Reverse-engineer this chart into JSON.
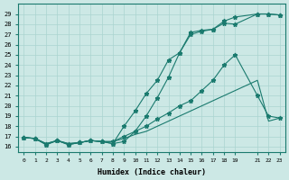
{
  "background_color": "#cce8e5",
  "grid_color": "#aad4d0",
  "line_color": "#1a7a6e",
  "xlabel": "Humidex (Indice chaleur)",
  "xlim": [
    -0.5,
    23.5
  ],
  "ylim": [
    15.5,
    30.0
  ],
  "xticks": [
    0,
    1,
    2,
    3,
    4,
    5,
    6,
    7,
    8,
    9,
    10,
    11,
    12,
    13,
    14,
    15,
    16,
    17,
    18,
    19,
    21,
    22,
    23
  ],
  "xtick_labels": [
    "0",
    "1",
    "2",
    "3",
    "4",
    "5",
    "6",
    "7",
    "8",
    "9",
    "10",
    "11",
    "12",
    "13",
    "14",
    "15",
    "16",
    "17",
    "18",
    "19",
    "21",
    "22",
    "23"
  ],
  "yticks": [
    16,
    17,
    18,
    19,
    20,
    21,
    22,
    23,
    24,
    25,
    26,
    27,
    28,
    29
  ],
  "lines": [
    {
      "x": [
        0,
        1,
        2,
        3,
        4,
        5,
        6,
        7,
        8,
        9,
        10,
        11,
        12,
        13,
        14,
        15,
        16,
        17,
        18,
        19,
        21,
        22,
        23
      ],
      "y": [
        16.9,
        16.8,
        16.2,
        16.6,
        16.2,
        16.4,
        16.6,
        16.5,
        16.3,
        18.0,
        19.5,
        21.2,
        22.5,
        24.5,
        25.2,
        27.2,
        27.4,
        27.5,
        28.3,
        28.7,
        29.0,
        29.0,
        28.9
      ],
      "markers": true
    },
    {
      "x": [
        0,
        1,
        2,
        3,
        4,
        5,
        6,
        7,
        8,
        9,
        10,
        11,
        12,
        13,
        14,
        15,
        16,
        17,
        18,
        19,
        21,
        22,
        23
      ],
      "y": [
        16.9,
        16.8,
        16.2,
        16.6,
        16.2,
        16.4,
        16.6,
        16.5,
        16.3,
        16.5,
        17.5,
        19.0,
        20.8,
        22.8,
        25.2,
        27.0,
        27.3,
        27.5,
        28.1,
        28.0,
        29.0,
        29.0,
        28.9
      ],
      "markers": true
    },
    {
      "x": [
        0,
        1,
        2,
        3,
        4,
        5,
        6,
        7,
        8,
        9,
        10,
        11,
        12,
        13,
        14,
        15,
        16,
        17,
        18,
        19,
        21,
        22,
        23
      ],
      "y": [
        16.9,
        16.8,
        16.3,
        16.6,
        16.3,
        16.4,
        16.6,
        16.5,
        16.5,
        17.0,
        17.5,
        18.0,
        18.7,
        19.3,
        20.0,
        20.5,
        21.5,
        22.5,
        24.0,
        25.0,
        21.0,
        19.0,
        18.8
      ],
      "markers": true
    },
    {
      "x": [
        0,
        1,
        2,
        3,
        4,
        5,
        6,
        7,
        8,
        9,
        10,
        11,
        12,
        13,
        14,
        15,
        16,
        17,
        18,
        19,
        21,
        22,
        23
      ],
      "y": [
        16.9,
        16.8,
        16.3,
        16.6,
        16.3,
        16.4,
        16.6,
        16.5,
        16.5,
        16.8,
        17.2,
        17.5,
        18.0,
        18.5,
        19.0,
        19.5,
        20.0,
        20.5,
        21.0,
        21.5,
        22.5,
        18.5,
        18.8
      ],
      "markers": false
    }
  ]
}
